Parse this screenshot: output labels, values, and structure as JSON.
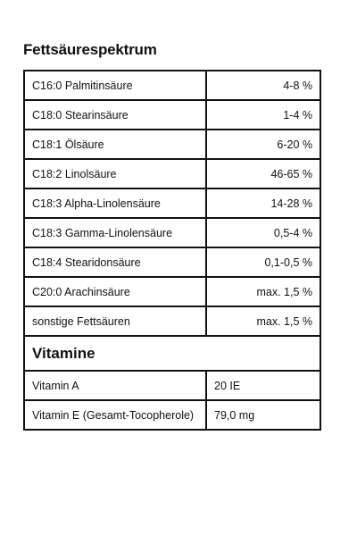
{
  "fatty_acids": {
    "title": "Fettsäurespektrum",
    "rows": [
      {
        "name": "C16:0 Palmitinsäure",
        "value": "4-8 %"
      },
      {
        "name": "C18:0 Stearinsäure",
        "value": "1-4 %"
      },
      {
        "name": "C18:1 Ölsäure",
        "value": "6-20 %"
      },
      {
        "name": "C18:2 Linolsäure",
        "value": "46-65 %"
      },
      {
        "name": "C18:3 Alpha-Linolensäure",
        "value": "14-28 %"
      },
      {
        "name": "C18:3 Gamma-Linolensäure",
        "value": "0,5-4 %"
      },
      {
        "name": "C18:4 Stearidonsäure",
        "value": "0,1-0,5 %"
      },
      {
        "name": "C20:0 Arachinsäure",
        "value": "max. 1,5 %"
      },
      {
        "name": "sonstige Fettsäuren",
        "value": "max. 1,5 %"
      }
    ]
  },
  "vitamins": {
    "title": "Vitamine",
    "rows": [
      {
        "name": "Vitamin A",
        "value": "20 IE"
      },
      {
        "name": "Vitamin E (Gesamt-Tocopherole)",
        "value": "79,0 mg"
      }
    ]
  }
}
